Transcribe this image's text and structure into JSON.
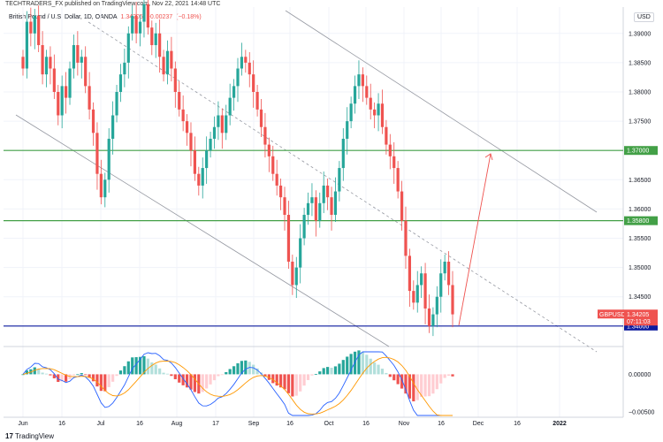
{
  "header": {
    "attribution": "TECHTRADERS_FX published on TradingView.com, Nov 22, 2021 14:48 UTC",
    "pair_name": "British Pound / U.S. Dollar, 1D, OANDA",
    "last_price": "1.34205",
    "change": "−0.00237",
    "change_pct": "(−0.18%)",
    "currency": "USD"
  },
  "footer": {
    "brand": "TradingView",
    "logo_glyph": "17"
  },
  "colors": {
    "up": "#26a69a",
    "down": "#ef5350",
    "hist_up_strong": "#26a69a",
    "hist_up_weak": "#b2dfdb",
    "hist_down_strong": "#ef5350",
    "hist_down_weak": "#ffcdd2",
    "macd_line": "#2962ff",
    "signal_line": "#ff9800",
    "level_green": "#43a047",
    "level_blue": "#0d1b9e",
    "projection": "#ef5350"
  },
  "chart_data": {
    "type": "candlestick",
    "instrument": "GBPUSD",
    "timeframe": "1D",
    "ylim": [
      1.3365,
      1.3945
    ],
    "y_ticks": [
      "1.39000",
      "1.38500",
      "1.38000",
      "1.37500",
      "1.37000",
      "1.36500",
      "1.36000",
      "1.35500",
      "1.35000",
      "1.34500",
      "1.34000"
    ],
    "x_ticks": [
      "Jun",
      "16",
      "Jul",
      "16",
      "Aug",
      "17",
      "Sep",
      "16",
      "Oct",
      "16",
      "Nov",
      "16",
      "Dec",
      "16",
      "2022"
    ],
    "price_levels": [
      {
        "value": 1.37,
        "label": "1.37000",
        "color": "green"
      },
      {
        "value": 1.358,
        "label": "1.35800",
        "color": "green"
      },
      {
        "value": 1.34,
        "label": "1.34000",
        "color": "blue"
      }
    ],
    "current_price_tag": {
      "symbol": "GBPUSD",
      "value": "1.34205",
      "countdown": "07:11:03"
    },
    "closes": [
      1.384,
      1.392,
      1.39,
      1.393,
      1.388,
      1.383,
      1.386,
      1.384,
      1.38,
      1.376,
      1.381,
      1.379,
      1.384,
      1.388,
      1.385,
      1.386,
      1.381,
      1.377,
      1.373,
      1.366,
      1.362,
      1.365,
      1.372,
      1.376,
      1.38,
      1.383,
      1.385,
      1.39,
      1.393,
      1.39,
      1.392,
      1.395,
      1.391,
      1.388,
      1.39,
      1.386,
      1.383,
      1.387,
      1.384,
      1.38,
      1.377,
      1.375,
      1.373,
      1.37,
      1.366,
      1.364,
      1.367,
      1.37,
      1.372,
      1.374,
      1.376,
      1.373,
      1.376,
      1.379,
      1.381,
      1.384,
      1.386,
      1.385,
      1.383,
      1.38,
      1.377,
      1.374,
      1.371,
      1.369,
      1.366,
      1.364,
      1.362,
      1.359,
      1.351,
      1.347,
      1.35,
      1.355,
      1.359,
      1.361,
      1.362,
      1.358,
      1.361,
      1.364,
      1.362,
      1.359,
      1.363,
      1.367,
      1.372,
      1.375,
      1.378,
      1.381,
      1.383,
      1.381,
      1.379,
      1.377,
      1.376,
      1.378,
      1.374,
      1.371,
      1.369,
      1.367,
      1.363,
      1.358,
      1.352,
      1.346,
      1.344,
      1.347,
      1.349,
      1.343,
      1.34,
      1.342,
      1.345,
      1.349,
      1.351,
      1.347,
      1.342
    ],
    "macd_hist_range": [
      -0.0055,
      0.003
    ],
    "macd_y_ticks": [
      "0.00000",
      "−0.00500"
    ]
  }
}
